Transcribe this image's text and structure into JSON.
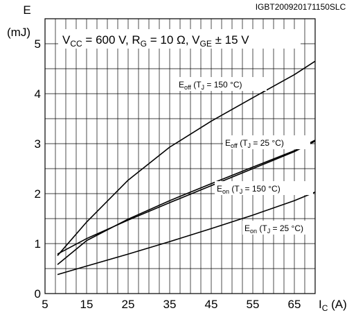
{
  "chart_data": {
    "type": "line",
    "code": "IGBT200920171150SLC",
    "condition": {
      "vcc": "600 V",
      "rg": "10 Ω",
      "vge": "± 15 V"
    },
    "y_axis": {
      "symbol": "E",
      "unit": "(mJ)"
    },
    "x_axis": {
      "symbol": "I",
      "subscript": "C",
      "unit": "(A)"
    },
    "xlim": [
      5,
      70
    ],
    "ylim": [
      0,
      5.5
    ],
    "xticks": [
      5,
      15,
      25,
      35,
      45,
      55,
      65
    ],
    "yticks": [
      0,
      1,
      2,
      3,
      4,
      5
    ],
    "grid": true,
    "series": [
      {
        "label": {
          "main": "E",
          "sub": "off",
          "cond_prefix": " (T",
          "cond_sub": "J",
          "cond_suffix": " = 150 °C)"
        },
        "x": [
          8,
          15,
          25,
          35,
          45,
          55,
          65,
          70
        ],
        "y": [
          0.76,
          1.43,
          2.27,
          2.93,
          3.45,
          3.92,
          4.38,
          4.65
        ]
      },
      {
        "label": {
          "main": "E",
          "sub": "off",
          "cond_prefix": " (T",
          "cond_sub": "J",
          "cond_suffix": " = 25 °C)"
        },
        "x": [
          8,
          15,
          25,
          35,
          45,
          55,
          65,
          70
        ],
        "y": [
          0.58,
          1.06,
          1.49,
          1.86,
          2.2,
          2.53,
          2.86,
          3.07
        ]
      },
      {
        "label": {
          "main": "E",
          "sub": "on",
          "cond_prefix": " (T",
          "cond_sub": "J",
          "cond_suffix": " = 150 °C)"
        },
        "x": [
          8,
          15,
          25,
          35,
          45,
          55,
          65,
          70
        ],
        "y": [
          0.79,
          1.1,
          1.47,
          1.82,
          2.16,
          2.5,
          2.84,
          3.05
        ]
      },
      {
        "label": {
          "main": "E",
          "sub": "on",
          "cond_prefix": " (T",
          "cond_sub": "J",
          "cond_suffix": " = 25 °C)"
        },
        "x": [
          8,
          15,
          25,
          35,
          45,
          55,
          65,
          70
        ],
        "y": [
          0.38,
          0.55,
          0.79,
          1.04,
          1.3,
          1.57,
          1.86,
          2.03
        ]
      }
    ]
  }
}
